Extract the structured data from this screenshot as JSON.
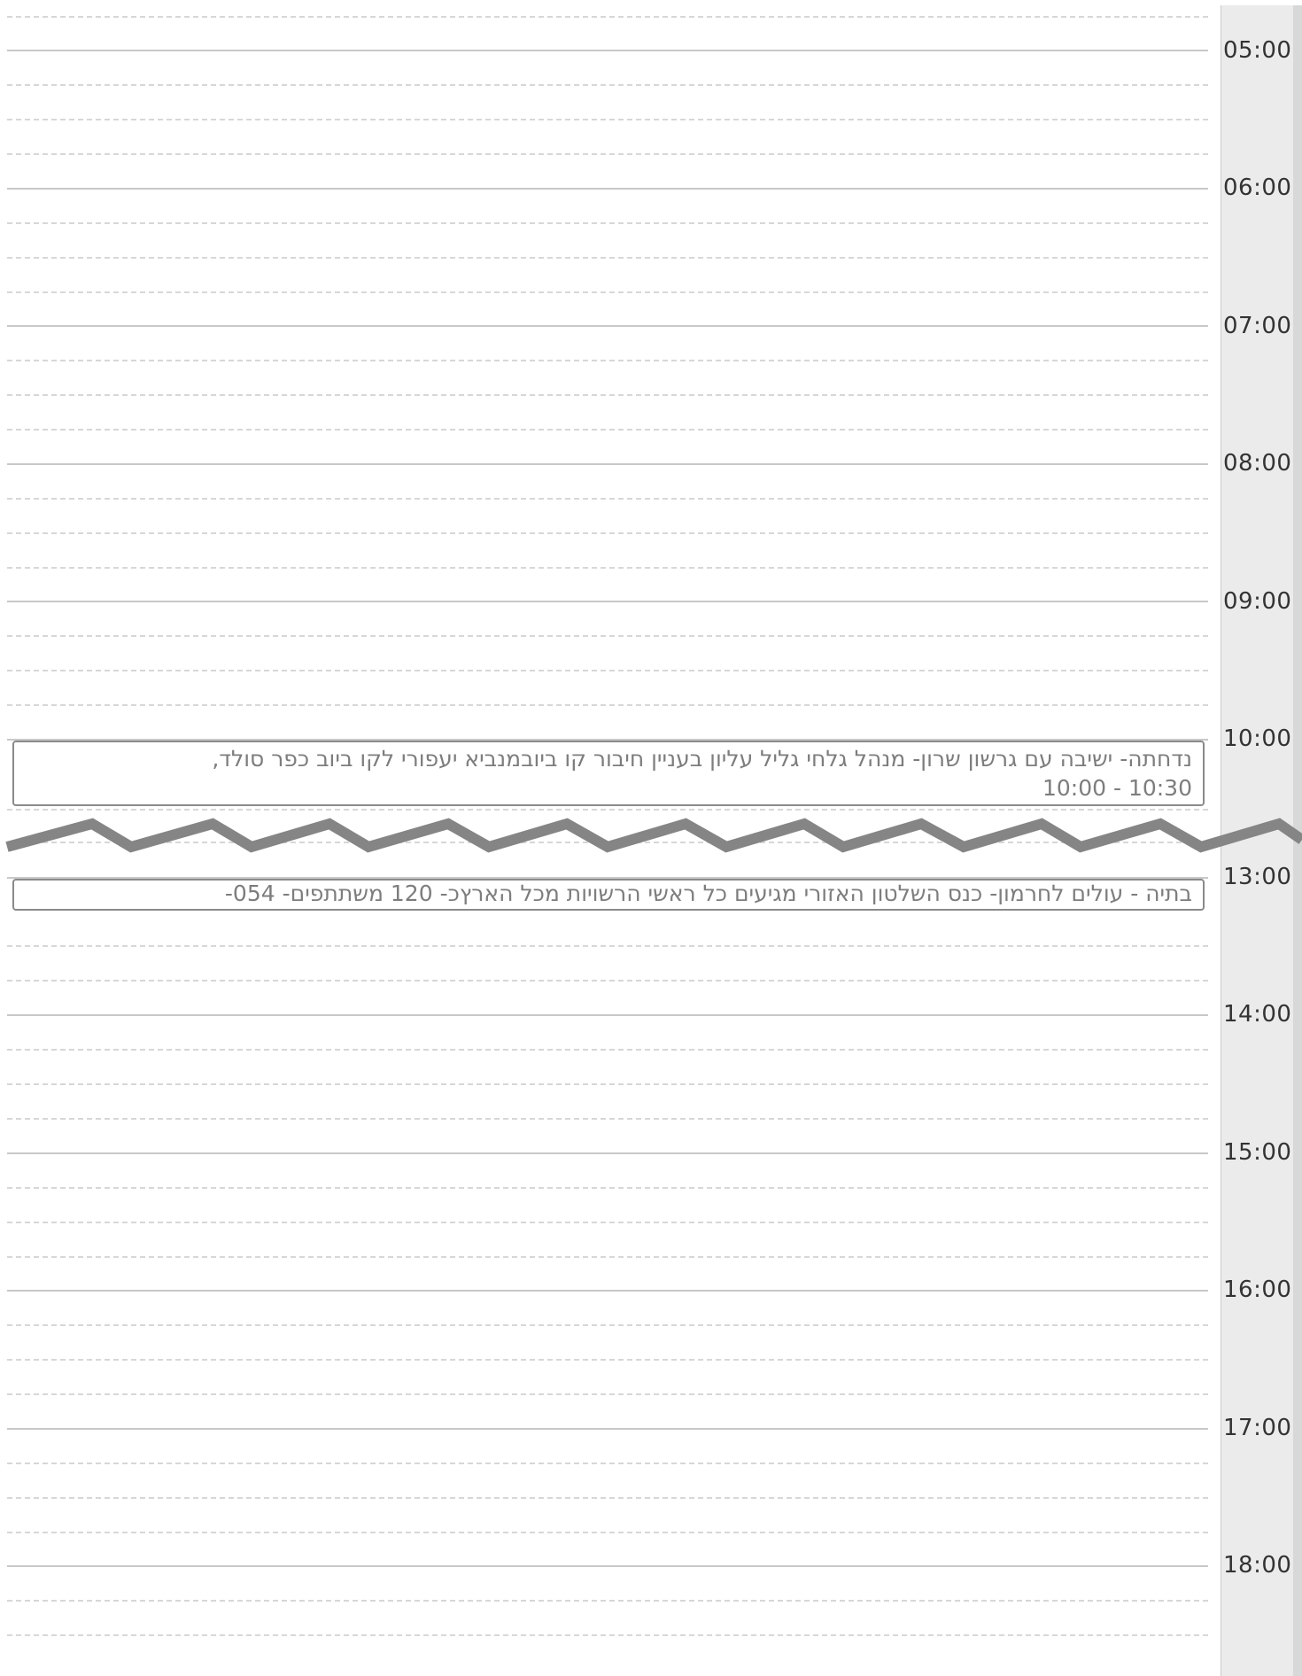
{
  "calendar": {
    "hours": [
      {
        "label": "05:00"
      },
      {
        "label": "06:00"
      },
      {
        "label": "07:00"
      },
      {
        "label": "08:00"
      },
      {
        "label": "09:00"
      },
      {
        "label": "10:00"
      },
      {
        "label": "13:00"
      },
      {
        "label": "14:00"
      },
      {
        "label": "15:00"
      },
      {
        "label": "16:00"
      },
      {
        "label": "17:00"
      },
      {
        "label": "18:00"
      }
    ],
    "events": [
      {
        "title": "נדחתה- ישיבה עם גרשון שרון- מנהל גלחי גליל עליון בעניין חיבור קו ביובמנביא יעפורי לקו ביוב כפר סולד,",
        "time": "10:00 - 10:30"
      },
      {
        "title": "בתיה - עולים לחרמון- כנס השלטון האזורי מגיעים כל ראשי הרשויות מכל הארץכ- 120 משתתפים- 054-"
      }
    ],
    "colors": {
      "hour_line": "#c8c8c8",
      "slot_line": "#d7d7d7",
      "gutter": "#ebebeb",
      "event_border": "#8a8a8a",
      "event_text": "#7d7d7d",
      "break_marker": "#858585"
    },
    "icons": {
      "time_break": "zigzag-break-icon"
    }
  }
}
